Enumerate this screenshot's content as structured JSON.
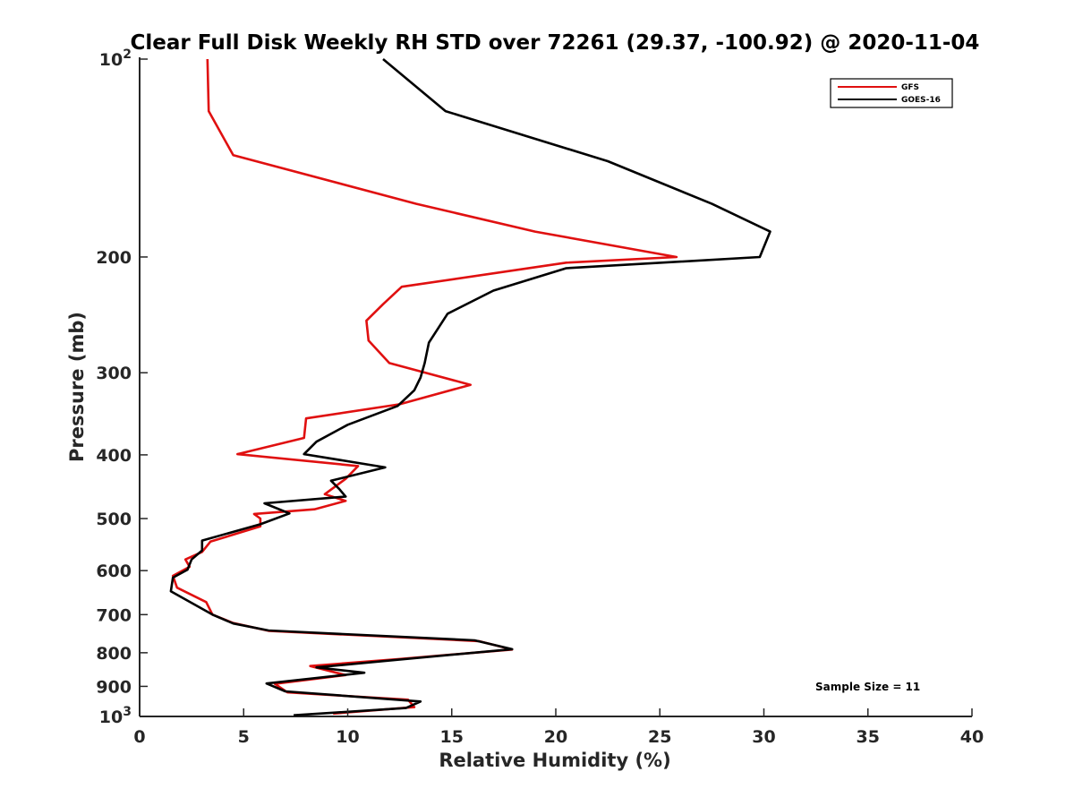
{
  "chart_data": {
    "type": "line",
    "title": "Clear Full Disk Weekly RH STD over 72261 (29.37, -100.92) @ 2020-11-04",
    "xlabel": "Relative Humidity (%)",
    "ylabel": "Pressure (mb)",
    "xlim": [
      0,
      40
    ],
    "ylim": [
      100,
      1000
    ],
    "y_scale": "log",
    "y_reversed": true,
    "grid": false,
    "x_ticks": [
      0,
      5,
      10,
      15,
      20,
      25,
      30,
      35,
      40
    ],
    "x_tick_labels": [
      "0",
      "5",
      "10",
      "15",
      "20",
      "25",
      "30",
      "35",
      "40"
    ],
    "y_ticks": [
      100,
      200,
      300,
      400,
      500,
      600,
      700,
      800,
      900,
      1000
    ],
    "y_tick_labels": [
      {
        "base": "10",
        "exp": "2"
      },
      {
        "base": "200"
      },
      {
        "base": "300"
      },
      {
        "base": "400"
      },
      {
        "base": "500"
      },
      {
        "base": "600"
      },
      {
        "base": "700"
      },
      {
        "base": "800"
      },
      {
        "base": "900"
      },
      {
        "base": "10",
        "exp": "3"
      }
    ],
    "legend": {
      "placement": "top-right",
      "entries": [
        "GFS",
        "GOES-16"
      ]
    },
    "annotation": "Sample Size = 11",
    "series": [
      {
        "name": "GFS",
        "color": "#e01010",
        "x": [
          3.26,
          3.32,
          4.5,
          13.3,
          19,
          25.8,
          20.5,
          12.6,
          11.7,
          10.9,
          11.0,
          12.0,
          15.9,
          12.5,
          8.0,
          7.9,
          4.7,
          10.5,
          9.9,
          8.9,
          9.9,
          8.4,
          5.5,
          5.8,
          5.8,
          3.4,
          3.0,
          2.2,
          2.4,
          1.6,
          1.8,
          3.2,
          3.5,
          4.5,
          6.2,
          16.3,
          17.9,
          12.4,
          8.2,
          9.9,
          6.5,
          7.1,
          12.9,
          13.2,
          9.3
        ],
        "y": [
          100,
          120,
          140,
          166,
          183,
          200,
          204,
          222,
          236,
          250,
          268,
          290,
          313,
          335,
          352,
          377,
          399,
          416,
          435,
          459,
          470,
          484,
          492,
          500,
          514,
          542,
          562,
          577,
          592,
          611,
          637,
          670,
          700,
          721,
          741,
          768,
          791,
          818,
          838,
          865,
          892,
          919,
          943,
          968,
          990
        ]
      },
      {
        "name": "GOES-16",
        "color": "#000000",
        "x": [
          11.7,
          14.7,
          22.5,
          27.5,
          30.3,
          29.8,
          20.5,
          17.0,
          14.8,
          13.9,
          13.7,
          13.5,
          13.2,
          12.4,
          10.0,
          8.5,
          7.9,
          11.8,
          9.2,
          9.6,
          9.9,
          6.0,
          7.2,
          5.8,
          3.0,
          3.0,
          2.5,
          2.3,
          1.6,
          1.5,
          3.5,
          4.5,
          6.2,
          16.1,
          17.9,
          12.4,
          8.5,
          10.8,
          6.1,
          7.0,
          13.5,
          12.8,
          7.4
        ],
        "y": [
          100,
          120,
          143,
          166,
          183,
          200,
          208,
          225,
          244,
          270,
          290,
          305,
          319,
          337,
          360,
          382,
          399,
          418,
          438,
          451,
          463,
          474,
          491,
          510,
          540,
          559,
          577,
          598,
          615,
          645,
          700,
          722,
          740,
          766,
          790,
          820,
          842,
          858,
          891,
          916,
          949,
          971,
          996
        ]
      }
    ]
  }
}
